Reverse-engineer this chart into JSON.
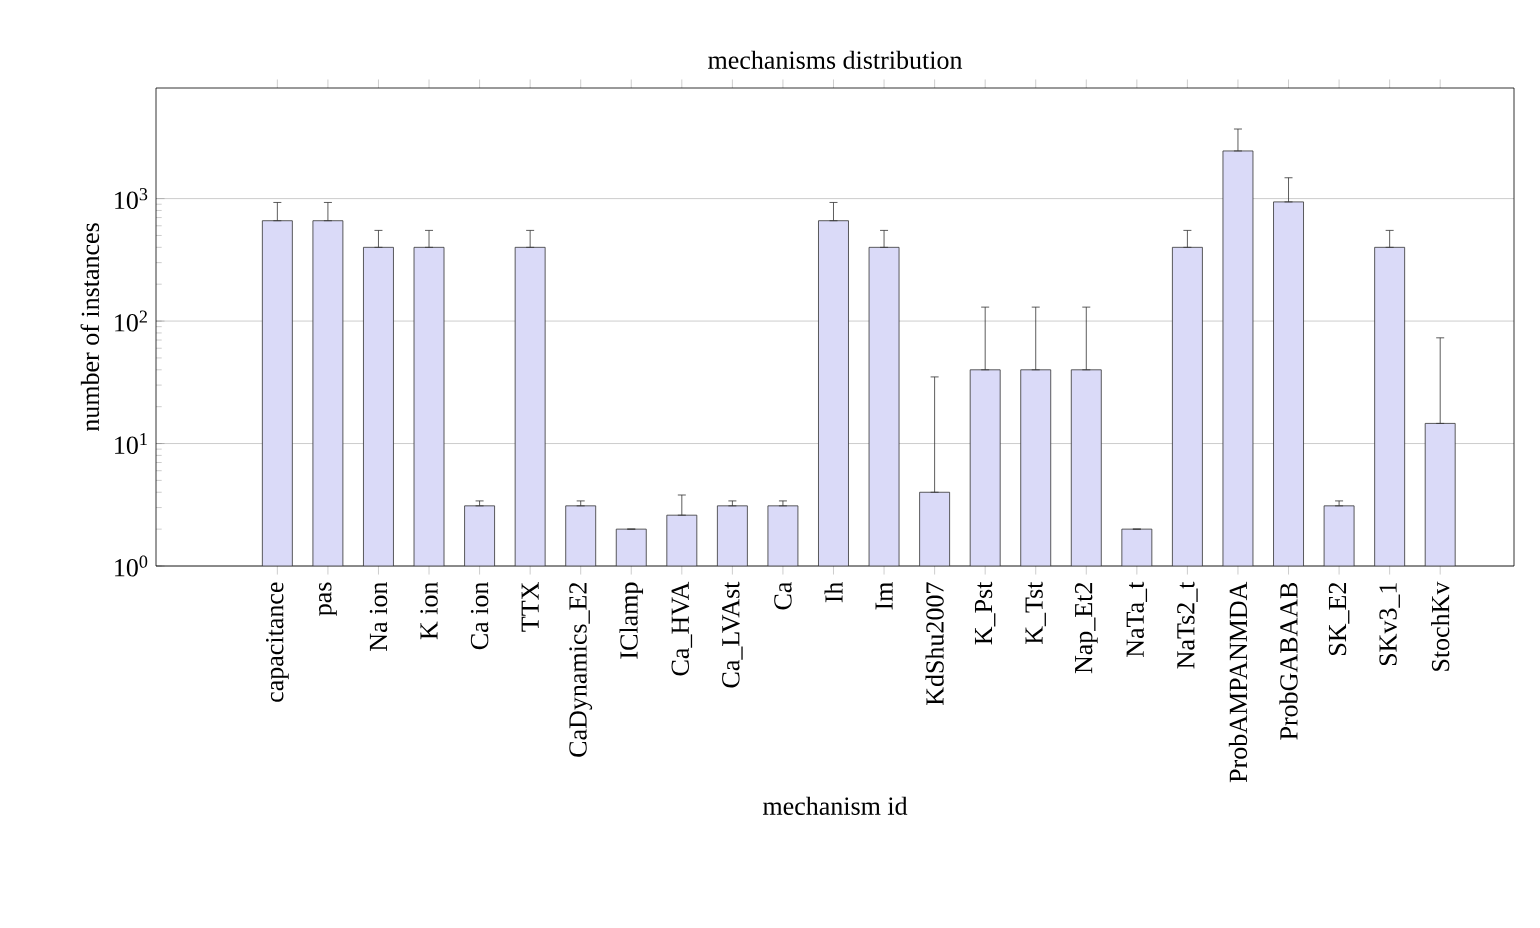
{
  "chart_data": {
    "type": "bar",
    "title": "mechanisms distribution",
    "xlabel": "mechanism id",
    "ylabel": "number of instances",
    "categories": [
      "capacitance",
      "pas",
      "Na ion",
      "K ion",
      "Ca ion",
      "TTX",
      "CaDynamics_E2",
      "IClamp",
      "Ca_HVA",
      "Ca_LVAst",
      "Ca",
      "Ih",
      "Im",
      "KdShu2007",
      "K_Pst",
      "K_Tst",
      "Nap_Et2",
      "NaTa_t",
      "NaTs2_t",
      "ProbAMPANMDA",
      "ProbGABAAB",
      "SK_E2",
      "SKv3_1",
      "StochKv"
    ],
    "values": [
      660,
      660,
      400,
      400,
      3.1,
      400,
      3.1,
      2.0,
      2.6,
      3.1,
      3.1,
      660,
      400,
      4.0,
      40,
      40,
      40,
      2.0,
      400,
      2450,
      940,
      3.1,
      400,
      14.6
    ],
    "errors": [
      [
        660,
        930
      ],
      [
        660,
        930
      ],
      [
        400,
        550
      ],
      [
        400,
        550
      ],
      [
        3.1,
        3.4
      ],
      [
        400,
        550
      ],
      [
        3.1,
        3.4
      ],
      null,
      [
        2.6,
        3.8
      ],
      [
        3.1,
        3.4
      ],
      [
        3.1,
        3.4
      ],
      [
        660,
        930
      ],
      [
        400,
        550
      ],
      [
        4.0,
        35
      ],
      [
        40,
        130
      ],
      [
        40,
        130
      ],
      [
        40,
        130
      ],
      null,
      [
        400,
        550
      ],
      [
        2450,
        3700
      ],
      [
        940,
        1480
      ],
      [
        3.1,
        3.4
      ],
      [
        400,
        550
      ],
      [
        14.6,
        73
      ]
    ],
    "color": "#dadaf8",
    "log": "y",
    "grid": "y",
    "ylim": [
      1,
      8000
    ],
    "yticks": [
      {
        "value": 1,
        "label": "10$^{0}$"
      },
      {
        "value": 10,
        "label": "10$^{1}$"
      },
      {
        "value": 100,
        "label": "10$^{2}$"
      },
      {
        "value": 1000,
        "label": "10$^{3}$"
      }
    ]
  }
}
